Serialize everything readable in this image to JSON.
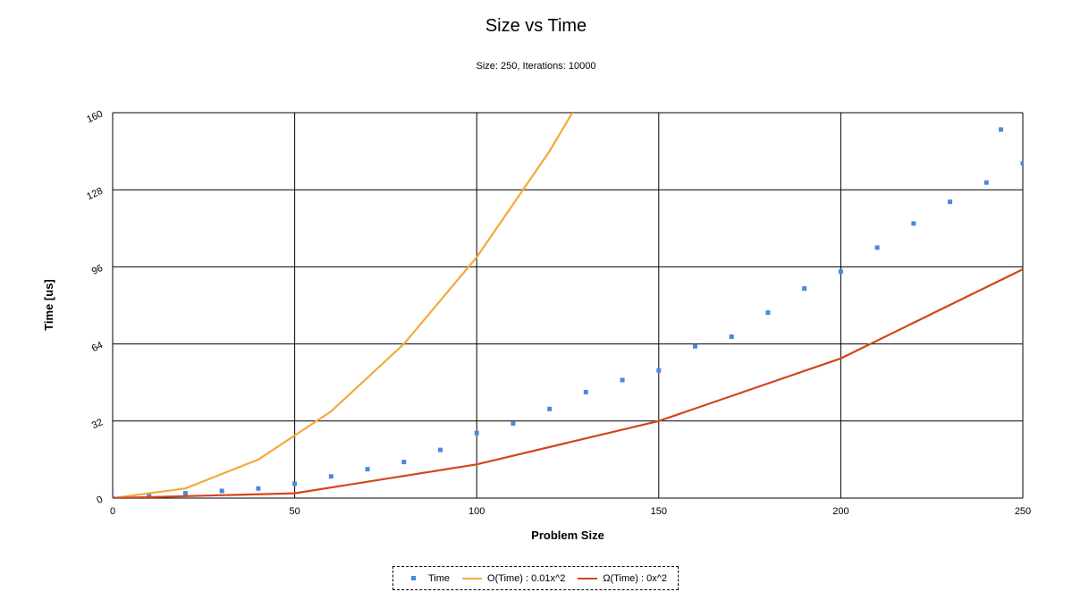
{
  "chart_data": {
    "type": "scatter",
    "title": "Size vs Time",
    "subtitle": "Size: 250, Iterations: 10000",
    "xlabel": "Problem Size",
    "ylabel": "Time [us]",
    "xlim": [
      0,
      250
    ],
    "ylim": [
      0,
      160
    ],
    "xticks": [
      "0",
      "50",
      "100",
      "150",
      "200",
      "250"
    ],
    "yticks": [
      "0",
      "32",
      "64",
      "96",
      "128",
      "160"
    ],
    "grid": true,
    "legend_position": "bottom-center",
    "series": [
      {
        "name": "Time",
        "kind": "scatter",
        "color": "#4a89dc",
        "x": [
          0,
          10,
          20,
          30,
          40,
          50,
          60,
          70,
          80,
          90,
          100,
          110,
          120,
          130,
          140,
          150,
          160,
          170,
          180,
          190,
          200,
          210,
          220,
          230,
          240,
          244,
          250
        ],
        "y": [
          0,
          1,
          2,
          3,
          4,
          6,
          9,
          12,
          15,
          20,
          27,
          31,
          37,
          44,
          49,
          53,
          63,
          67,
          77,
          87,
          94,
          104,
          114,
          123,
          131,
          153,
          139
        ]
      },
      {
        "name": "O(Time) : 0.01x^2",
        "kind": "line",
        "color": "#f3a93c",
        "x": [
          0,
          20,
          40,
          60,
          80,
          100,
          120,
          131
        ],
        "y": [
          0,
          4,
          16,
          36,
          64,
          100,
          144,
          172
        ]
      },
      {
        "name": "Ω(Time) : 0x^2",
        "kind": "line",
        "color": "#d2461b",
        "x": [
          0,
          50,
          100,
          150,
          200,
          250
        ],
        "y": [
          0,
          2,
          14,
          32,
          58,
          95
        ]
      }
    ]
  }
}
